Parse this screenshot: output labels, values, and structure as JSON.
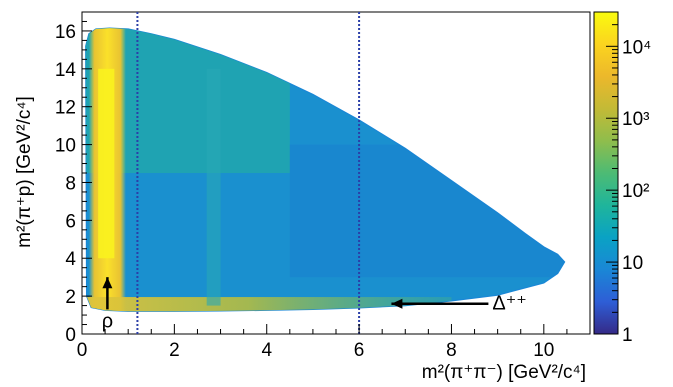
{
  "chart_data": {
    "type": "heatmap",
    "title": "",
    "xlabel": "m²(π⁺π⁻) [GeV²/c⁴]",
    "ylabel": "m²(π⁺p) [GeV²/c⁴]",
    "xlim": [
      0,
      11
    ],
    "ylim": [
      0,
      17
    ],
    "x_ticks": [
      "0",
      "2",
      "4",
      "6",
      "8",
      "10"
    ],
    "x_tick_values": [
      0,
      2,
      4,
      6,
      8,
      10
    ],
    "y_ticks": [
      "0",
      "2",
      "4",
      "6",
      "8",
      "10",
      "12",
      "14",
      "16"
    ],
    "y_tick_values": [
      0,
      2,
      4,
      6,
      8,
      10,
      12,
      14,
      16
    ],
    "z_scale": "log",
    "zlim": [
      1,
      30000
    ],
    "z_ticks": [
      "1",
      "10",
      "10²",
      "10³",
      "10⁴"
    ],
    "z_tick_values": [
      1,
      10,
      100,
      1000,
      10000
    ],
    "colormap": [
      "#352a87",
      "#2e5ed6",
      "#1a87d6",
      "#0aa2c4",
      "#1fb59b",
      "#4dbb74",
      "#8fbd4c",
      "#c3ba36",
      "#ecb82b",
      "#fbd41f",
      "#f9fb0e"
    ],
    "dalitz_boundary": {
      "upper": [
        [
          0.08,
          15.2
        ],
        [
          0.15,
          15.85
        ],
        [
          0.3,
          16.1
        ],
        [
          0.6,
          16.15
        ],
        [
          1.0,
          16.1
        ],
        [
          1.5,
          15.85
        ],
        [
          2.0,
          15.55
        ],
        [
          3.0,
          14.75
        ],
        [
          4.0,
          13.8
        ],
        [
          5.0,
          12.65
        ],
        [
          6.0,
          11.3
        ],
        [
          7.0,
          9.8
        ],
        [
          8.0,
          8.1
        ],
        [
          9.0,
          6.4
        ],
        [
          9.6,
          5.3
        ],
        [
          10.0,
          4.6
        ],
        [
          10.3,
          4.2
        ],
        [
          10.45,
          3.8
        ]
      ],
      "lower": [
        [
          10.45,
          3.8
        ],
        [
          10.3,
          3.2
        ],
        [
          10.0,
          2.7
        ],
        [
          9.0,
          2.05
        ],
        [
          8.0,
          1.75
        ],
        [
          7.0,
          1.5
        ],
        [
          6.0,
          1.38
        ],
        [
          5.0,
          1.3
        ],
        [
          4.0,
          1.25
        ],
        [
          3.0,
          1.22
        ],
        [
          2.0,
          1.2
        ],
        [
          1.0,
          1.2
        ],
        [
          0.5,
          1.25
        ],
        [
          0.2,
          1.4
        ],
        [
          0.1,
          2.0
        ],
        [
          0.08,
          15.2
        ]
      ]
    },
    "vertical_lines": [
      1.2,
      6.0
    ],
    "annotations": [
      {
        "label": "ρ",
        "arrow_from": [
          0.55,
          1.3
        ],
        "arrow_to": [
          0.55,
          3.0
        ]
      },
      {
        "label": "Δ⁺⁺",
        "arrow_from": [
          8.8,
          1.6
        ],
        "arrow_to": [
          6.7,
          1.6
        ]
      }
    ]
  }
}
